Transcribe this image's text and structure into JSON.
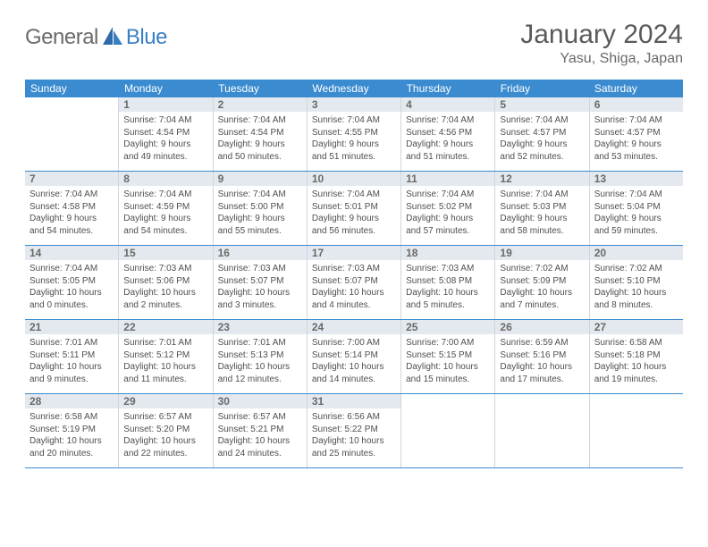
{
  "brand": {
    "part1": "General",
    "part2": "Blue"
  },
  "title": "January 2024",
  "location": "Yasu, Shiga, Japan",
  "colors": {
    "header_bar": "#3b8bd0",
    "day_num_bg": "#e3e9ee",
    "row_border": "#3b8bd0",
    "cell_border": "#cdd7df",
    "text": "#4f4f4f",
    "logo_gray": "#6b6b6b",
    "logo_blue": "#3a7fc4"
  },
  "days_of_week": [
    "Sunday",
    "Monday",
    "Tuesday",
    "Wednesday",
    "Thursday",
    "Friday",
    "Saturday"
  ],
  "weeks": [
    [
      {
        "n": ""
      },
      {
        "n": "1",
        "sunrise": "Sunrise: 7:04 AM",
        "sunset": "Sunset: 4:54 PM",
        "d1": "Daylight: 9 hours",
        "d2": "and 49 minutes."
      },
      {
        "n": "2",
        "sunrise": "Sunrise: 7:04 AM",
        "sunset": "Sunset: 4:54 PM",
        "d1": "Daylight: 9 hours",
        "d2": "and 50 minutes."
      },
      {
        "n": "3",
        "sunrise": "Sunrise: 7:04 AM",
        "sunset": "Sunset: 4:55 PM",
        "d1": "Daylight: 9 hours",
        "d2": "and 51 minutes."
      },
      {
        "n": "4",
        "sunrise": "Sunrise: 7:04 AM",
        "sunset": "Sunset: 4:56 PM",
        "d1": "Daylight: 9 hours",
        "d2": "and 51 minutes."
      },
      {
        "n": "5",
        "sunrise": "Sunrise: 7:04 AM",
        "sunset": "Sunset: 4:57 PM",
        "d1": "Daylight: 9 hours",
        "d2": "and 52 minutes."
      },
      {
        "n": "6",
        "sunrise": "Sunrise: 7:04 AM",
        "sunset": "Sunset: 4:57 PM",
        "d1": "Daylight: 9 hours",
        "d2": "and 53 minutes."
      }
    ],
    [
      {
        "n": "7",
        "sunrise": "Sunrise: 7:04 AM",
        "sunset": "Sunset: 4:58 PM",
        "d1": "Daylight: 9 hours",
        "d2": "and 54 minutes."
      },
      {
        "n": "8",
        "sunrise": "Sunrise: 7:04 AM",
        "sunset": "Sunset: 4:59 PM",
        "d1": "Daylight: 9 hours",
        "d2": "and 54 minutes."
      },
      {
        "n": "9",
        "sunrise": "Sunrise: 7:04 AM",
        "sunset": "Sunset: 5:00 PM",
        "d1": "Daylight: 9 hours",
        "d2": "and 55 minutes."
      },
      {
        "n": "10",
        "sunrise": "Sunrise: 7:04 AM",
        "sunset": "Sunset: 5:01 PM",
        "d1": "Daylight: 9 hours",
        "d2": "and 56 minutes."
      },
      {
        "n": "11",
        "sunrise": "Sunrise: 7:04 AM",
        "sunset": "Sunset: 5:02 PM",
        "d1": "Daylight: 9 hours",
        "d2": "and 57 minutes."
      },
      {
        "n": "12",
        "sunrise": "Sunrise: 7:04 AM",
        "sunset": "Sunset: 5:03 PM",
        "d1": "Daylight: 9 hours",
        "d2": "and 58 minutes."
      },
      {
        "n": "13",
        "sunrise": "Sunrise: 7:04 AM",
        "sunset": "Sunset: 5:04 PM",
        "d1": "Daylight: 9 hours",
        "d2": "and 59 minutes."
      }
    ],
    [
      {
        "n": "14",
        "sunrise": "Sunrise: 7:04 AM",
        "sunset": "Sunset: 5:05 PM",
        "d1": "Daylight: 10 hours",
        "d2": "and 0 minutes."
      },
      {
        "n": "15",
        "sunrise": "Sunrise: 7:03 AM",
        "sunset": "Sunset: 5:06 PM",
        "d1": "Daylight: 10 hours",
        "d2": "and 2 minutes."
      },
      {
        "n": "16",
        "sunrise": "Sunrise: 7:03 AM",
        "sunset": "Sunset: 5:07 PM",
        "d1": "Daylight: 10 hours",
        "d2": "and 3 minutes."
      },
      {
        "n": "17",
        "sunrise": "Sunrise: 7:03 AM",
        "sunset": "Sunset: 5:07 PM",
        "d1": "Daylight: 10 hours",
        "d2": "and 4 minutes."
      },
      {
        "n": "18",
        "sunrise": "Sunrise: 7:03 AM",
        "sunset": "Sunset: 5:08 PM",
        "d1": "Daylight: 10 hours",
        "d2": "and 5 minutes."
      },
      {
        "n": "19",
        "sunrise": "Sunrise: 7:02 AM",
        "sunset": "Sunset: 5:09 PM",
        "d1": "Daylight: 10 hours",
        "d2": "and 7 minutes."
      },
      {
        "n": "20",
        "sunrise": "Sunrise: 7:02 AM",
        "sunset": "Sunset: 5:10 PM",
        "d1": "Daylight: 10 hours",
        "d2": "and 8 minutes."
      }
    ],
    [
      {
        "n": "21",
        "sunrise": "Sunrise: 7:01 AM",
        "sunset": "Sunset: 5:11 PM",
        "d1": "Daylight: 10 hours",
        "d2": "and 9 minutes."
      },
      {
        "n": "22",
        "sunrise": "Sunrise: 7:01 AM",
        "sunset": "Sunset: 5:12 PM",
        "d1": "Daylight: 10 hours",
        "d2": "and 11 minutes."
      },
      {
        "n": "23",
        "sunrise": "Sunrise: 7:01 AM",
        "sunset": "Sunset: 5:13 PM",
        "d1": "Daylight: 10 hours",
        "d2": "and 12 minutes."
      },
      {
        "n": "24",
        "sunrise": "Sunrise: 7:00 AM",
        "sunset": "Sunset: 5:14 PM",
        "d1": "Daylight: 10 hours",
        "d2": "and 14 minutes."
      },
      {
        "n": "25",
        "sunrise": "Sunrise: 7:00 AM",
        "sunset": "Sunset: 5:15 PM",
        "d1": "Daylight: 10 hours",
        "d2": "and 15 minutes."
      },
      {
        "n": "26",
        "sunrise": "Sunrise: 6:59 AM",
        "sunset": "Sunset: 5:16 PM",
        "d1": "Daylight: 10 hours",
        "d2": "and 17 minutes."
      },
      {
        "n": "27",
        "sunrise": "Sunrise: 6:58 AM",
        "sunset": "Sunset: 5:18 PM",
        "d1": "Daylight: 10 hours",
        "d2": "and 19 minutes."
      }
    ],
    [
      {
        "n": "28",
        "sunrise": "Sunrise: 6:58 AM",
        "sunset": "Sunset: 5:19 PM",
        "d1": "Daylight: 10 hours",
        "d2": "and 20 minutes."
      },
      {
        "n": "29",
        "sunrise": "Sunrise: 6:57 AM",
        "sunset": "Sunset: 5:20 PM",
        "d1": "Daylight: 10 hours",
        "d2": "and 22 minutes."
      },
      {
        "n": "30",
        "sunrise": "Sunrise: 6:57 AM",
        "sunset": "Sunset: 5:21 PM",
        "d1": "Daylight: 10 hours",
        "d2": "and 24 minutes."
      },
      {
        "n": "31",
        "sunrise": "Sunrise: 6:56 AM",
        "sunset": "Sunset: 5:22 PM",
        "d1": "Daylight: 10 hours",
        "d2": "and 25 minutes."
      },
      {
        "n": ""
      },
      {
        "n": ""
      },
      {
        "n": ""
      }
    ]
  ]
}
